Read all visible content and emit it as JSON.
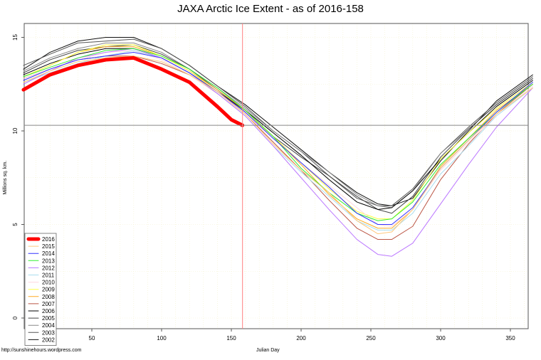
{
  "chart_data": {
    "type": "line",
    "title": "JAXA Arctic Ice Extent - as of 2016-158",
    "xlabel": "Julian Day",
    "ylabel": "Millions sq. km.",
    "xlim": [
      1,
      366
    ],
    "ylim": [
      -0.6,
      15.7
    ],
    "xticks": [
      50,
      100,
      150,
      200,
      250,
      300,
      350
    ],
    "yticks": [
      0,
      5,
      10,
      15
    ],
    "grid": true,
    "legend_position": "bottom-left",
    "reference_lines": {
      "horizontal_y": 10.3,
      "vertical_x": 158,
      "vertical_color": "#ff8080",
      "horizontal_color": "#888888"
    },
    "x": [
      1,
      20,
      40,
      60,
      80,
      100,
      120,
      140,
      160,
      180,
      200,
      220,
      240,
      255,
      265,
      280,
      300,
      320,
      340,
      366
    ],
    "series": [
      {
        "name": "2016",
        "color": "#ff0000",
        "x": [
          1,
          20,
          40,
          60,
          80,
          100,
          120,
          140,
          150,
          158
        ],
        "values": [
          12.2,
          13.0,
          13.5,
          13.8,
          13.9,
          13.3,
          12.6,
          11.3,
          10.6,
          10.3
        ]
      },
      {
        "name": "2015",
        "color": "#ffc87c",
        "values": [
          12.6,
          13.2,
          13.7,
          13.9,
          14.0,
          13.7,
          13.0,
          12.1,
          10.9,
          9.3,
          7.9,
          6.7,
          5.2,
          4.5,
          4.6,
          5.8,
          8.0,
          9.5,
          10.9,
          12.3
        ]
      },
      {
        "name": "2014",
        "color": "#3333ff",
        "values": [
          12.7,
          13.3,
          13.8,
          14.0,
          14.2,
          13.9,
          13.1,
          12.1,
          11.0,
          9.6,
          8.3,
          7.0,
          5.6,
          5.0,
          5.0,
          5.9,
          8.0,
          9.5,
          11.0,
          12.6
        ]
      },
      {
        "name": "2013",
        "color": "#33ee33",
        "values": [
          12.9,
          13.4,
          13.9,
          14.3,
          14.4,
          14.0,
          13.3,
          12.3,
          11.1,
          9.7,
          8.0,
          6.7,
          5.6,
          5.2,
          5.3,
          6.2,
          8.2,
          9.6,
          11.0,
          12.5
        ]
      },
      {
        "name": "2012",
        "color": "#bb77ff",
        "values": [
          12.5,
          13.2,
          13.9,
          14.2,
          14.4,
          13.9,
          13.1,
          12.0,
          10.8,
          9.2,
          7.5,
          5.8,
          4.2,
          3.4,
          3.3,
          4.0,
          6.1,
          8.2,
          10.2,
          12.3
        ]
      },
      {
        "name": "2011",
        "color": "#aaddee",
        "values": [
          12.6,
          13.1,
          13.6,
          14.0,
          14.3,
          13.9,
          13.1,
          12.0,
          10.8,
          9.2,
          7.8,
          6.5,
          5.2,
          4.7,
          4.7,
          5.6,
          7.7,
          9.2,
          10.8,
          12.3
        ]
      },
      {
        "name": "2010",
        "color": "#ffd8e0",
        "values": [
          12.8,
          13.3,
          13.8,
          14.2,
          14.3,
          13.8,
          13.0,
          12.0,
          10.9,
          9.6,
          8.3,
          7.1,
          5.9,
          5.0,
          4.9,
          5.8,
          7.9,
          9.4,
          10.8,
          12.4
        ]
      },
      {
        "name": "2009",
        "color": "#ffff44",
        "values": [
          12.9,
          13.5,
          14.2,
          14.6,
          14.6,
          14.0,
          13.2,
          12.1,
          11.0,
          9.7,
          8.3,
          6.9,
          5.7,
          5.3,
          5.3,
          6.3,
          8.5,
          9.9,
          11.2,
          12.6
        ]
      },
      {
        "name": "2008",
        "color": "#ffaa22",
        "values": [
          12.9,
          13.5,
          14.2,
          14.5,
          14.5,
          14.0,
          13.2,
          12.2,
          11.1,
          9.7,
          8.2,
          6.6,
          5.3,
          4.8,
          4.8,
          5.8,
          8.1,
          9.6,
          11.1,
          12.5
        ]
      },
      {
        "name": "2007",
        "color": "#bb5544",
        "values": [
          12.8,
          13.3,
          13.8,
          14.0,
          14.0,
          13.6,
          13.0,
          12.0,
          10.9,
          9.4,
          7.9,
          6.3,
          4.8,
          4.2,
          4.2,
          4.9,
          7.4,
          9.3,
          10.9,
          12.5
        ]
      },
      {
        "name": "2006",
        "color": "#000000",
        "values": [
          13.0,
          13.6,
          14.1,
          14.4,
          14.4,
          13.9,
          13.1,
          12.1,
          11.1,
          9.9,
          8.7,
          7.4,
          6.2,
          5.8,
          5.9,
          6.8,
          8.5,
          9.9,
          11.3,
          12.7
        ]
      },
      {
        "name": "2005",
        "color": "#444444",
        "values": [
          13.1,
          13.8,
          14.3,
          14.5,
          14.6,
          14.1,
          13.3,
          12.2,
          11.0,
          9.7,
          8.6,
          7.6,
          6.5,
          5.8,
          5.6,
          6.5,
          8.6,
          10.1,
          11.4,
          12.8
        ]
      },
      {
        "name": "2004",
        "color": "#888888",
        "values": [
          13.2,
          13.9,
          14.4,
          14.7,
          14.7,
          14.2,
          13.3,
          12.3,
          11.2,
          10.0,
          8.9,
          7.8,
          6.6,
          6.0,
          5.9,
          6.8,
          8.8,
          10.1,
          11.4,
          12.8
        ]
      },
      {
        "name": "2003",
        "color": "#555555",
        "values": [
          13.5,
          14.1,
          14.7,
          14.8,
          14.9,
          14.4,
          13.5,
          12.4,
          11.3,
          10.0,
          8.9,
          7.6,
          6.4,
          6.0,
          6.0,
          6.9,
          8.8,
          10.2,
          11.5,
          12.9
        ]
      },
      {
        "name": "2002",
        "color": "#111111",
        "values": [
          13.3,
          14.2,
          14.8,
          15.0,
          15.0,
          14.4,
          13.5,
          12.4,
          11.4,
          10.2,
          9.0,
          7.8,
          6.7,
          6.1,
          6.0,
          6.4,
          8.4,
          10.0,
          11.6,
          13.0
        ]
      }
    ]
  },
  "footer": "http://sunshinehours.wordpress.com"
}
